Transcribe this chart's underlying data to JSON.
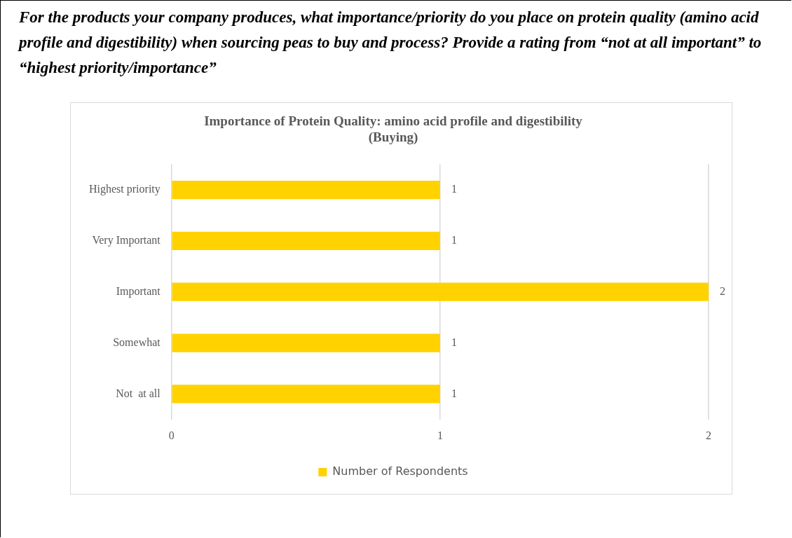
{
  "chart_data": {
    "type": "bar",
    "orientation": "horizontal",
    "title": "For the products your company produces, what importance/priority do you place on protein quality (amino acid profile and digestibility) when sourcing peas to buy and process? Provide a rating from “not at all important” to “highest priority/importance”",
    "subtitle": "Importance of Protein Quality: amino acid profile and digestibility\n(Buying)",
    "categories": [
      "Highest priority",
      "Very Important",
      "Important",
      "Somewhat",
      "Not  at all"
    ],
    "series": [
      {
        "name": "Number of Respondents",
        "color": "#ffd200",
        "values": [
          1,
          1,
          2,
          1,
          1
        ]
      }
    ],
    "xlim": [
      0,
      2
    ],
    "xticks": [
      0,
      1,
      2
    ],
    "grid": "x",
    "legend": "bottom",
    "data_labels": true
  }
}
